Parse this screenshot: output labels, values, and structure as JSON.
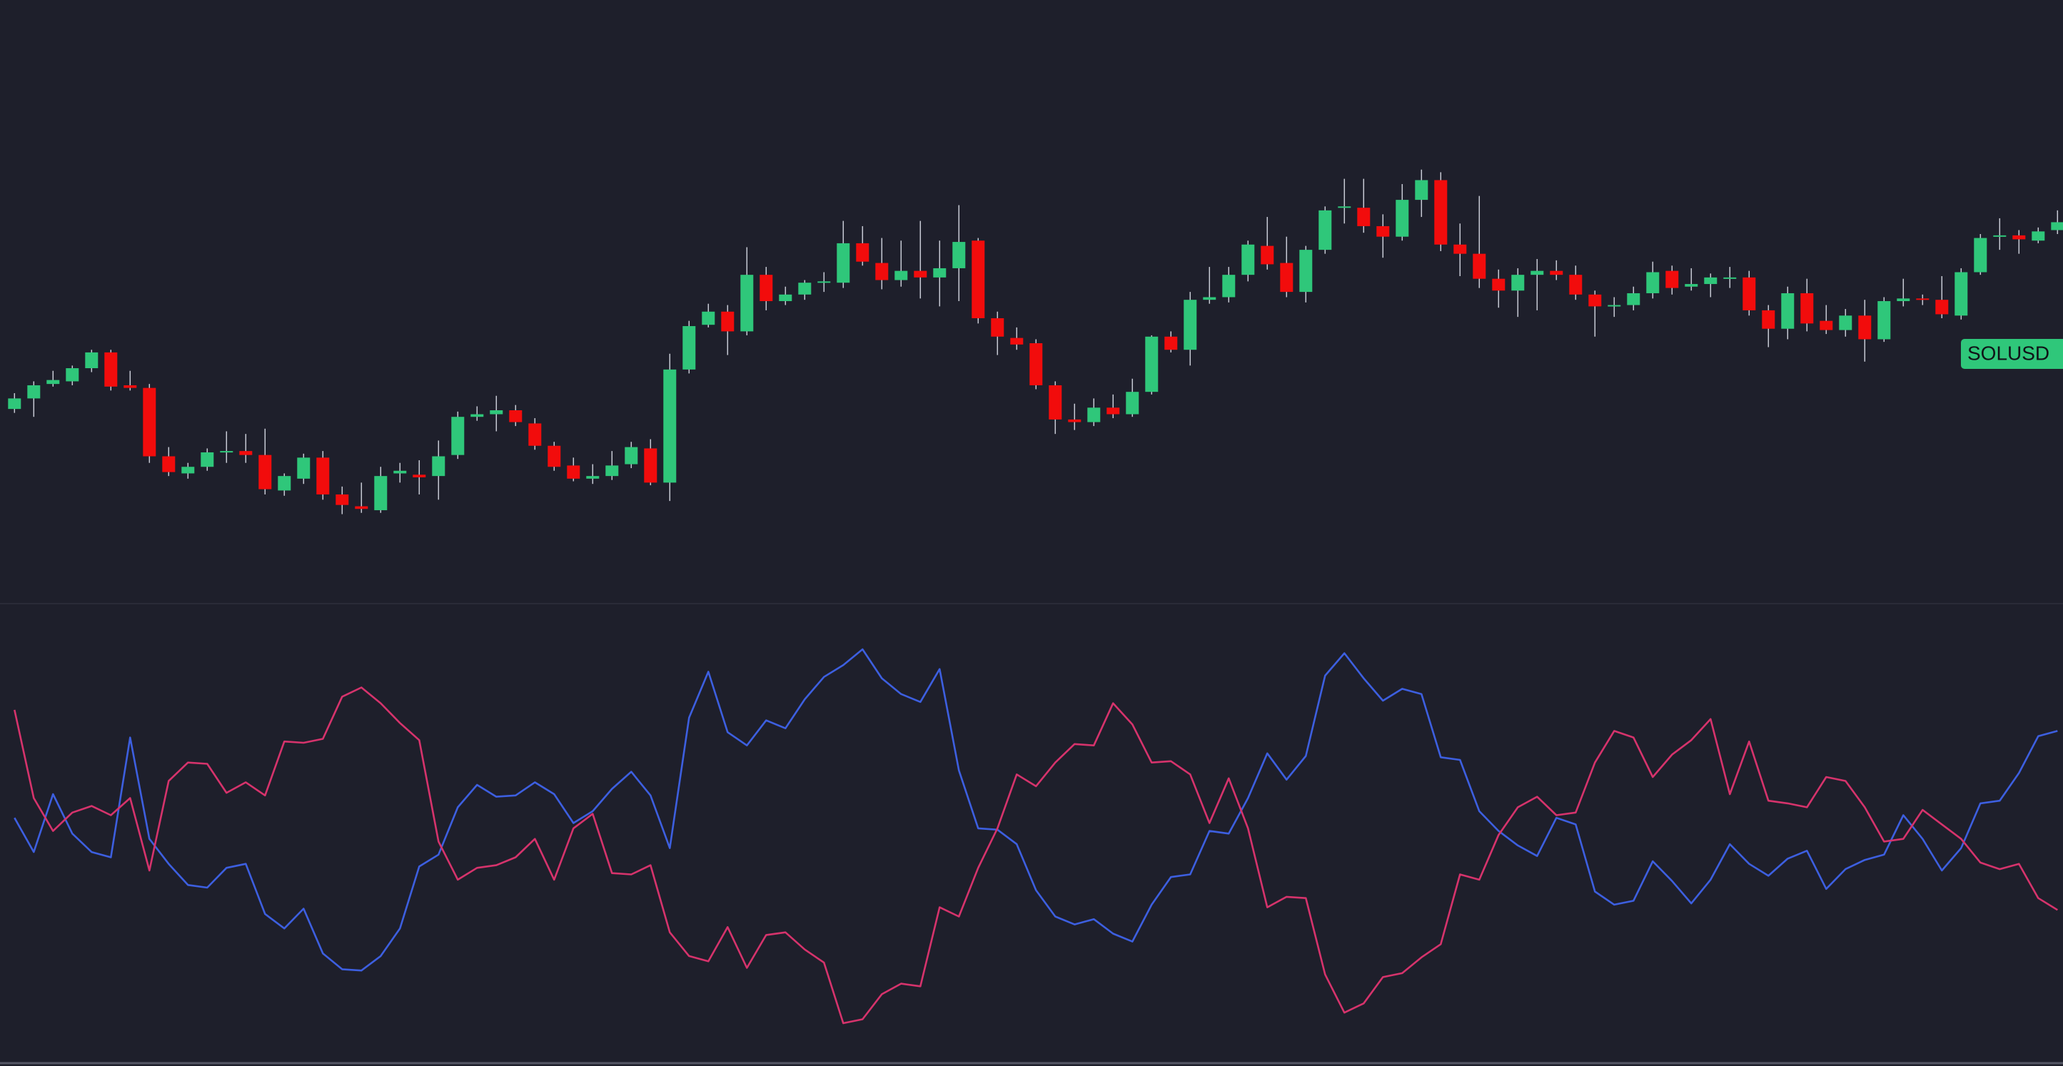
{
  "chart_data": [
    {
      "type": "candlestick",
      "symbol": "SOLUSD",
      "up_color": "#2fc77a",
      "down_color": "#f20c0c",
      "open": [
        189,
        197,
        208,
        210,
        220,
        232,
        207,
        205,
        153,
        140,
        145,
        156,
        157,
        154,
        127,
        136,
        152,
        124,
        115,
        112,
        140,
        139,
        138,
        154,
        183,
        185,
        188,
        178,
        161,
        146,
        136,
        138,
        147,
        159,
        133,
        219,
        253,
        263,
        248,
        291,
        271,
        276,
        285,
        285,
        315,
        300,
        287,
        294,
        289,
        296,
        317,
        258,
        243,
        239,
        207,
        181,
        179,
        190,
        185,
        202,
        244,
        234,
        272,
        274,
        291,
        313,
        300,
        278,
        310,
        342,
        342,
        328,
        320,
        348,
        363,
        314,
        307,
        288,
        279,
        291,
        294,
        291,
        276,
        267,
        268,
        277,
        294,
        282,
        284,
        288,
        289,
        264,
        250,
        277,
        256,
        249,
        260,
        242,
        271,
        273,
        272,
        260,
        293,
        320,
        321,
        317,
        325
      ],
      "high": [
        201,
        210,
        218,
        222,
        234,
        234,
        218,
        208,
        160,
        148,
        159,
        172,
        170,
        174,
        140,
        155,
        157,
        130,
        133,
        145,
        148,
        150,
        165,
        187,
        191,
        199,
        192,
        182,
        164,
        152,
        147,
        157,
        164,
        166,
        231,
        256,
        269,
        268,
        312,
        297,
        282,
        287,
        293,
        332,
        328,
        319,
        317,
        332,
        317,
        344,
        319,
        263,
        251,
        242,
        210,
        193,
        197,
        200,
        212,
        245,
        248,
        278,
        297,
        297,
        317,
        335,
        320,
        313,
        343,
        364,
        364,
        337,
        360,
        371,
        369,
        330,
        351,
        295,
        296,
        303,
        302,
        298,
        279,
        274,
        282,
        301,
        298,
        296,
        292,
        297,
        294,
        268,
        282,
        288,
        268,
        265,
        272,
        274,
        288,
        276,
        290,
        296,
        322,
        334,
        325,
        327,
        340
      ],
      "low": [
        186,
        183,
        206,
        207,
        217,
        203,
        203,
        148,
        138,
        136,
        142,
        148,
        148,
        124,
        123,
        132,
        120,
        109,
        110,
        110,
        133,
        124,
        120,
        151,
        180,
        172,
        176,
        158,
        142,
        134,
        132,
        135,
        144,
        131,
        119,
        216,
        251,
        230,
        245,
        264,
        268,
        272,
        278,
        281,
        298,
        280,
        282,
        273,
        267,
        271,
        254,
        230,
        234,
        204,
        170,
        173,
        176,
        182,
        183,
        200,
        232,
        222,
        269,
        270,
        286,
        295,
        274,
        270,
        307,
        330,
        323,
        304,
        317,
        335,
        309,
        290,
        281,
        266,
        259,
        264,
        287,
        272,
        244,
        259,
        264,
        273,
        276,
        279,
        274,
        281,
        260,
        236,
        242,
        248,
        246,
        244,
        225,
        240,
        267,
        268,
        258,
        257,
        291,
        310,
        307,
        315,
        322
      ],
      "close": [
        197,
        207,
        211,
        220,
        232,
        206,
        205,
        153,
        141,
        145,
        156,
        157,
        154,
        128,
        138,
        152,
        124,
        116,
        113,
        138,
        142,
        137,
        153,
        183,
        185,
        188,
        179,
        161,
        145,
        136,
        138,
        146,
        160,
        133,
        219,
        252,
        263,
        248,
        291,
        271,
        276,
        285,
        286,
        315,
        301,
        287,
        294,
        289,
        296,
        316,
        258,
        244,
        238,
        207,
        181,
        179,
        190,
        185,
        202,
        244,
        234,
        272,
        274,
        291,
        314,
        299,
        278,
        310,
        340,
        343,
        328,
        320,
        348,
        363,
        314,
        307,
        288,
        279,
        291,
        294,
        291,
        276,
        267,
        268,
        277,
        293,
        281,
        284,
        289,
        289,
        264,
        250,
        277,
        254,
        249,
        260,
        242,
        271,
        273,
        272,
        261,
        293,
        319,
        321,
        318,
        324,
        331
      ]
    },
    {
      "type": "line",
      "series": [
        {
          "color": "#3d5fe0",
          "values": [
            278,
            252,
            296,
            266,
            252,
            248,
            339,
            262,
            243,
            227,
            225,
            240,
            243,
            205,
            194,
            209,
            175,
            163,
            162,
            173,
            194,
            241,
            250,
            286,
            303,
            294,
            295,
            305,
            296,
            274,
            283,
            300,
            313,
            295,
            255,
            354,
            389,
            343,
            333,
            352,
            346,
            368,
            385,
            394,
            406,
            384,
            372,
            366,
            391,
            314,
            270,
            269,
            258,
            223,
            203,
            197,
            201,
            190,
            184,
            212,
            233,
            235,
            268,
            266,
            293,
            327,
            307,
            325,
            386,
            403,
            384,
            367,
            376,
            372,
            324,
            322,
            283,
            268,
            257,
            249,
            278,
            273,
            222,
            212,
            215,
            245,
            230,
            213,
            231,
            258,
            243,
            234,
            247,
            253,
            224,
            239,
            246,
            250,
            280,
            262,
            238,
            255,
            289,
            291,
            312,
            340,
            344
          ]
        },
        {
          "color": "#d6336c",
          "values": [
            360,
            293,
            268,
            282,
            287,
            280,
            293,
            238,
            306,
            320,
            319,
            297,
            305,
            295,
            336,
            335,
            338,
            370,
            377,
            365,
            350,
            337,
            260,
            231,
            240,
            242,
            248,
            262,
            231,
            270,
            281,
            236,
            235,
            242,
            191,
            173,
            169,
            195,
            164,
            189,
            191,
            178,
            168,
            122,
            125,
            144,
            152,
            150,
            210,
            203,
            240,
            270,
            311,
            302,
            320,
            334,
            333,
            365,
            349,
            320,
            321,
            311,
            274,
            308,
            270,
            210,
            218,
            217,
            159,
            130,
            137,
            157,
            160,
            172,
            182,
            235,
            231,
            265,
            286,
            294,
            280,
            282,
            320,
            344,
            339,
            309,
            326,
            337,
            353,
            296,
            336,
            291,
            289,
            286,
            309,
            306,
            286,
            260,
            262,
            284,
            273,
            262,
            244,
            239,
            243,
            217,
            208
          ]
        }
      ]
    }
  ]
}
